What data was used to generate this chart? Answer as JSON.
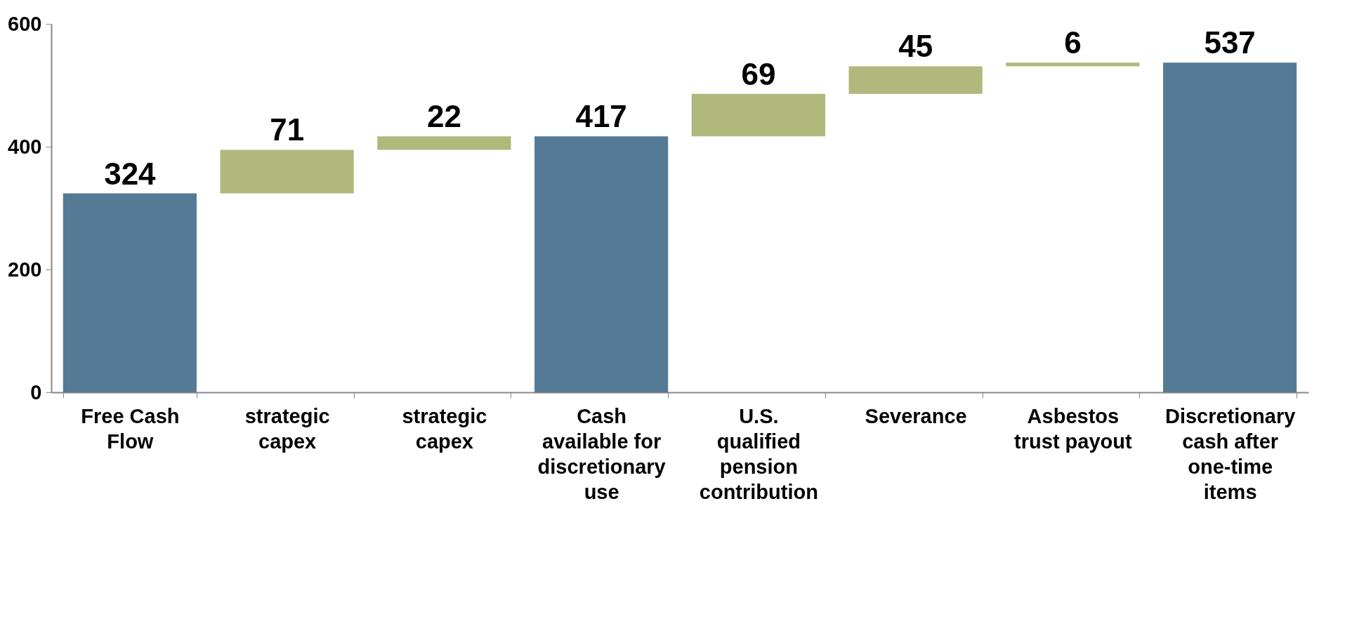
{
  "chart_data": {
    "type": "bar",
    "categories": [
      "Free Cash Flow",
      "strategic capex",
      "strategic capex",
      "Cash available for discretionary use",
      "U.S. qualified pension contribution",
      "Severance",
      "Asbestos trust payout",
      "Discretionary cash after one-time items"
    ],
    "values": [
      324,
      71,
      22,
      417,
      69,
      45,
      6,
      537
    ],
    "base": [
      0,
      324,
      395,
      0,
      417,
      486,
      531,
      0
    ],
    "colors": [
      "#557a96",
      "#b0b87c",
      "#b0b87c",
      "#557a96",
      "#b0b87c",
      "#b0b87c",
      "#b0b87c",
      "#557a96"
    ],
    "data_labels": true,
    "ylim": [
      0,
      600
    ],
    "yticks": [
      0,
      200,
      400,
      600
    ],
    "grid": false,
    "legend": false
  }
}
